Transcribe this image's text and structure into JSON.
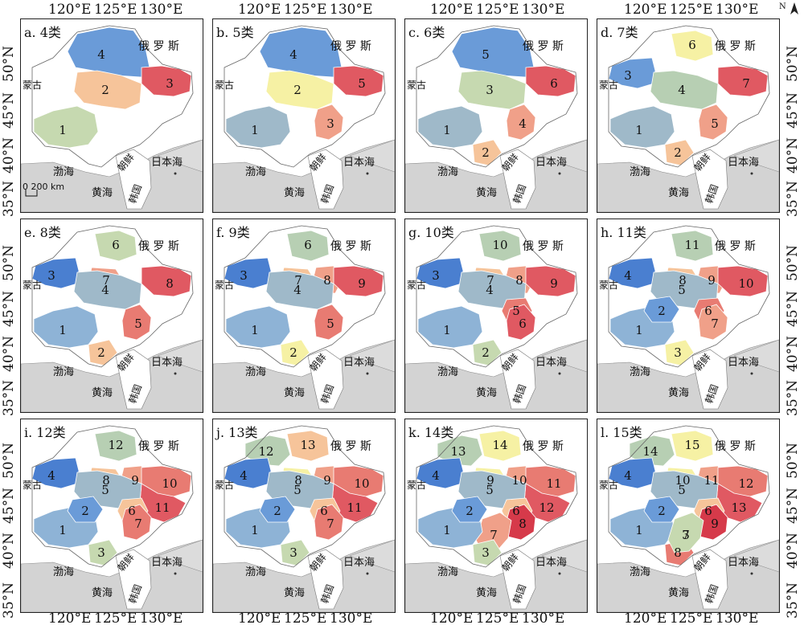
{
  "axis": {
    "lon_labels": [
      "120°E",
      "125°E",
      "130°E"
    ],
    "lat_labels": [
      "50°N",
      "45°N",
      "40°N",
      "35°N"
    ]
  },
  "map_labels": {
    "russia": "俄 罗 斯",
    "mongolia": "蒙古",
    "korea_north": "朝鲜",
    "korea_south": "韩国",
    "sea_japan": "日本海",
    "sea_yellow": "黄海",
    "sea_bohai": "渤海",
    "scale": "0  200 km",
    "north": "N"
  },
  "colors": {
    "ocean": "#d3d3d3",
    "land_other": "#ffffff",
    "c_blue_dark": "#4a7fd0",
    "c_blue_mid": "#6a9bd8",
    "c_blue_light": "#8eb3d6",
    "c_grayblue": "#9fb9c9",
    "c_sage": "#b7cfb3",
    "c_lightgreen": "#c6d9b0",
    "c_yellow": "#f6f1a4",
    "c_peach": "#f6c49a",
    "c_salmon": "#f0a089",
    "c_coral": "#e87b72",
    "c_red": "#e05962",
    "c_crimson": "#d63a4a"
  },
  "panels": [
    {
      "label": "a. 4类",
      "numbers": [
        "4",
        "2",
        "3",
        "1"
      ]
    },
    {
      "label": "b. 5类",
      "numbers": [
        "4",
        "2",
        "5",
        "3",
        "1"
      ]
    },
    {
      "label": "c. 6类",
      "numbers": [
        "5",
        "3",
        "6",
        "4",
        "1",
        "2"
      ]
    },
    {
      "label": "d. 7类",
      "numbers": [
        "6",
        "3",
        "4",
        "7",
        "5",
        "1",
        "2"
      ]
    },
    {
      "label": "e. 8类",
      "numbers": [
        "6",
        "3",
        "7",
        "4",
        "8",
        "5",
        "1",
        "2"
      ]
    },
    {
      "label": "f. 9类",
      "numbers": [
        "6",
        "3",
        "7",
        "8",
        "4",
        "9",
        "5",
        "1",
        "2"
      ]
    },
    {
      "label": "g. 10类",
      "numbers": [
        "10",
        "3",
        "7",
        "8",
        "4",
        "9",
        "5",
        "6",
        "1",
        "2"
      ]
    },
    {
      "label": "h. 11类",
      "numbers": [
        "11",
        "4",
        "8",
        "9",
        "5",
        "10",
        "6",
        "7",
        "1",
        "2",
        "3"
      ]
    },
    {
      "label": "i. 12类",
      "numbers": [
        "12",
        "4",
        "8",
        "9",
        "10",
        "11",
        "5",
        "6",
        "7",
        "1",
        "2",
        "3"
      ]
    },
    {
      "label": "j. 13类",
      "numbers": [
        "13",
        "12",
        "4",
        "8",
        "9",
        "10",
        "11",
        "5",
        "6",
        "7",
        "1",
        "2",
        "3"
      ]
    },
    {
      "label": "k. 14类",
      "numbers": [
        "14",
        "13",
        "4",
        "9",
        "10",
        "11",
        "12",
        "5",
        "6",
        "8",
        "7",
        "1",
        "2",
        "3"
      ]
    },
    {
      "label": "l. 15类",
      "numbers": [
        "15",
        "14",
        "4",
        "10",
        "11",
        "12",
        "13",
        "5",
        "6",
        "7",
        "9",
        "8",
        "1",
        "2",
        "3"
      ]
    }
  ]
}
